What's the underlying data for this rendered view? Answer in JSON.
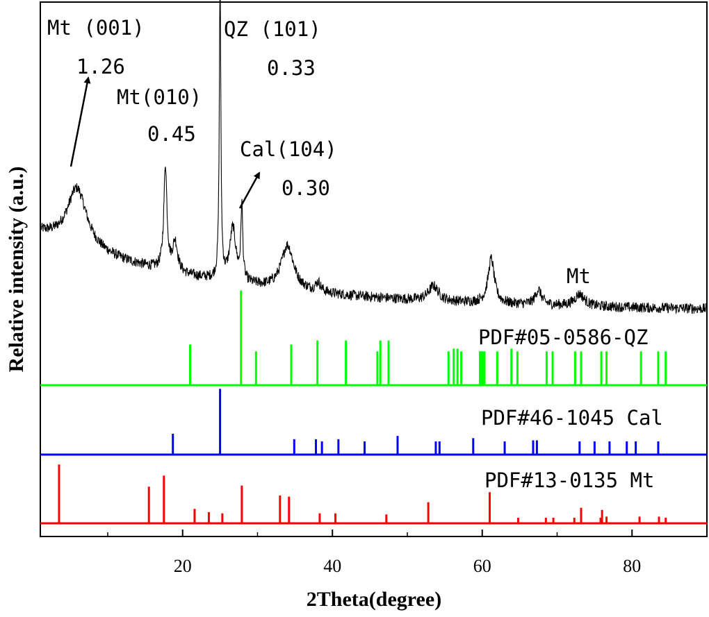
{
  "chart_data": {
    "type": "line",
    "xlabel": "2Theta(degree)",
    "ylabel": "Relative intensity (a.u.)",
    "xlim": [
      1,
      90
    ],
    "xticks": [
      20,
      40,
      60,
      80
    ],
    "grid": false,
    "legend": "none",
    "series": [
      {
        "kind": "xrd-pattern",
        "color": "#000000",
        "baseline": 0.62,
        "peaks": [
          {
            "x": 5.9,
            "h": 0.2,
            "w": 1.6
          },
          {
            "x": 17.7,
            "h": 0.35,
            "w": 0.25
          },
          {
            "x": 19.0,
            "h": 0.1,
            "w": 0.4
          },
          {
            "x": 25.0,
            "h": 1.02,
            "w": 0.12
          },
          {
            "x": 26.7,
            "h": 0.18,
            "w": 0.5
          },
          {
            "x": 27.9,
            "h": 0.25,
            "w": 0.15
          },
          {
            "x": 34.0,
            "h": 0.15,
            "w": 1.0
          },
          {
            "x": 38.1,
            "h": 0.03,
            "w": 0.4
          },
          {
            "x": 53.5,
            "h": 0.05,
            "w": 0.8
          },
          {
            "x": 61.2,
            "h": 0.15,
            "w": 0.5
          },
          {
            "x": 67.5,
            "h": 0.05,
            "w": 0.5
          },
          {
            "x": 73.0,
            "h": 0.04,
            "w": 0.8
          }
        ]
      },
      {
        "name": "PDF#05-0586-QZ",
        "kind": "reference",
        "color": "#00ff00",
        "sticks": [
          [
            21.0,
            0.3
          ],
          [
            27.8,
            0.7
          ],
          [
            29.8,
            0.25
          ],
          [
            34.5,
            0.3
          ],
          [
            38.0,
            0.33
          ],
          [
            41.8,
            0.33
          ],
          [
            46.0,
            0.25
          ],
          [
            46.4,
            0.33
          ],
          [
            47.5,
            0.33
          ],
          [
            55.5,
            0.25
          ],
          [
            56.2,
            0.27
          ],
          [
            56.7,
            0.27
          ],
          [
            57.2,
            0.25
          ],
          [
            59.7,
            0.25
          ],
          [
            59.9,
            0.25
          ],
          [
            60.1,
            0.25
          ],
          [
            60.3,
            0.25
          ],
          [
            62.0,
            0.25
          ],
          [
            63.9,
            0.27
          ],
          [
            64.7,
            0.25
          ],
          [
            68.6,
            0.25
          ],
          [
            69.4,
            0.25
          ],
          [
            72.4,
            0.25
          ],
          [
            73.2,
            0.25
          ],
          [
            75.9,
            0.25
          ],
          [
            76.6,
            0.25
          ],
          [
            81.2,
            0.25
          ],
          [
            83.5,
            0.25
          ],
          [
            84.5,
            0.25
          ]
        ]
      },
      {
        "name": "PDF#46-1045 Cal",
        "kind": "reference",
        "color": "#0000ff",
        "sticks": [
          [
            18.7,
            0.19
          ],
          [
            25.0,
            0.6
          ],
          [
            34.9,
            0.14
          ],
          [
            37.8,
            0.14
          ],
          [
            38.6,
            0.12
          ],
          [
            40.8,
            0.14
          ],
          [
            44.3,
            0.12
          ],
          [
            48.7,
            0.17
          ],
          [
            53.8,
            0.12
          ],
          [
            54.3,
            0.12
          ],
          [
            58.8,
            0.15
          ],
          [
            63.0,
            0.12
          ],
          [
            66.8,
            0.13
          ],
          [
            67.3,
            0.13
          ],
          [
            73.0,
            0.12
          ],
          [
            75.0,
            0.12
          ],
          [
            77.0,
            0.12
          ],
          [
            79.3,
            0.12
          ],
          [
            80.5,
            0.12
          ],
          [
            83.5,
            0.12
          ]
        ]
      },
      {
        "name": "PDF#13-0135 Mt",
        "kind": "reference",
        "color": "#ff0000",
        "sticks": [
          [
            3.5,
            0.53
          ],
          [
            15.5,
            0.33
          ],
          [
            17.5,
            0.43
          ],
          [
            21.6,
            0.13
          ],
          [
            23.5,
            0.1
          ],
          [
            25.3,
            0.09
          ],
          [
            27.9,
            0.34
          ],
          [
            33.0,
            0.25
          ],
          [
            34.2,
            0.24
          ],
          [
            38.3,
            0.09
          ],
          [
            40.4,
            0.09
          ],
          [
            47.2,
            0.08
          ],
          [
            52.8,
            0.19
          ],
          [
            61.0,
            0.28
          ],
          [
            64.8,
            0.05
          ],
          [
            68.5,
            0.05
          ],
          [
            69.5,
            0.05
          ],
          [
            72.3,
            0.05
          ],
          [
            73.2,
            0.14
          ],
          [
            75.8,
            0.05
          ],
          [
            76.0,
            0.12
          ],
          [
            76.6,
            0.06
          ],
          [
            81.0,
            0.06
          ],
          [
            83.6,
            0.06
          ],
          [
            84.5,
            0.05
          ]
        ]
      }
    ],
    "annotations": [
      {
        "text": "Mt (001)"
      },
      {
        "text": "1.26"
      },
      {
        "text": "Mt(010)"
      },
      {
        "text": "0.45"
      },
      {
        "text": "QZ (101)"
      },
      {
        "text": "0.33"
      },
      {
        "text": "Cal(104)"
      },
      {
        "text": "0.30"
      },
      {
        "text": "Mt"
      },
      {
        "text": "PDF#05-0586-QZ"
      },
      {
        "text": "PDF#46-1045 Cal"
      },
      {
        "text": "PDF#13-0135 Mt"
      }
    ]
  }
}
